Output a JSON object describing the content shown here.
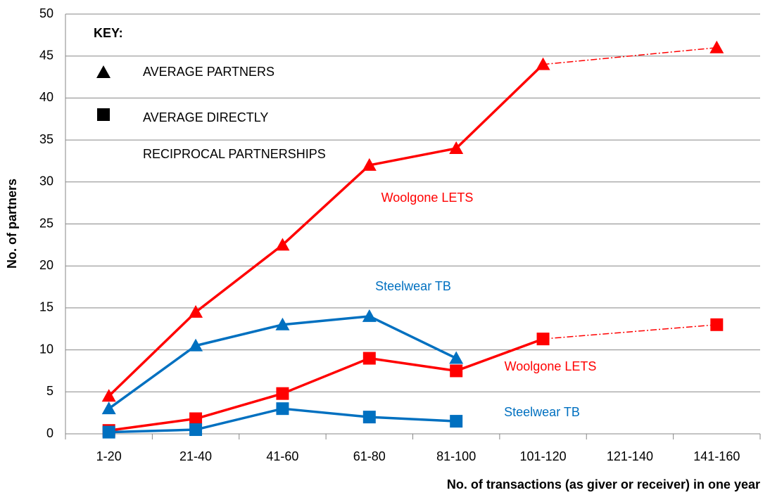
{
  "chart_data": {
    "type": "line",
    "categories": [
      "1-20",
      "21-40",
      "41-60",
      "61-80",
      "81-100",
      "101-120",
      "121-140",
      "141-160"
    ],
    "series": [
      {
        "name": "Woolgone LETS",
        "color": "#ff0000",
        "marker": "triangle",
        "values": [
          4.5,
          14.5,
          22.5,
          32,
          34,
          44,
          null,
          46
        ]
      },
      {
        "name": "Steelwear TB",
        "color": "#0070c0",
        "marker": "triangle",
        "values": [
          3,
          10.5,
          13,
          14,
          9,
          null,
          null,
          null
        ]
      },
      {
        "name": "Woolgone LETS",
        "color": "#ff0000",
        "marker": "square",
        "values": [
          0.4,
          1.8,
          4.8,
          9,
          7.5,
          11.3,
          null,
          13
        ]
      },
      {
        "name": "Steelwear TB",
        "color": "#0070c0",
        "marker": "square",
        "values": [
          0.2,
          0.5,
          3,
          2,
          1.5,
          null,
          null,
          null
        ]
      }
    ],
    "ylim": [
      0,
      50
    ],
    "yticks": [
      0,
      5,
      10,
      15,
      20,
      25,
      30,
      35,
      40,
      45,
      50
    ],
    "grid": true,
    "y_label": "No. of partners",
    "x_label": "No. of transactions (as giver or receiver) in one year",
    "key": {
      "title": "KEY:",
      "items": [
        {
          "marker": "triangle",
          "lines": [
            "AVERAGE PARTNERS"
          ]
        },
        {
          "marker": "square",
          "lines": [
            "AVERAGE DIRECTLY",
            "RECIPROCAL PARTNERSHIPS"
          ]
        }
      ]
    }
  }
}
